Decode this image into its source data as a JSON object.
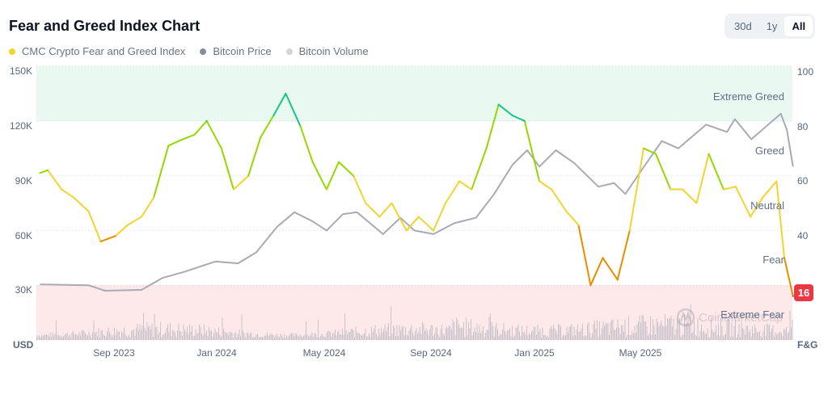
{
  "title": "Fear and Greed Index Chart",
  "legend": [
    {
      "label": "CMC Crypto Fear and Greed Index",
      "color": "#f3d42f"
    },
    {
      "label": "Bitcoin Price",
      "color": "#8a8d98"
    },
    {
      "label": "Bitcoin Volume",
      "color": "#d3d5da"
    }
  ],
  "range_buttons": [
    {
      "label": "30d",
      "active": false
    },
    {
      "label": "1y",
      "active": false
    },
    {
      "label": "All",
      "active": true
    }
  ],
  "watermark": "CoinMarketCap",
  "chart_data": {
    "type": "line",
    "title": "",
    "left_axis": {
      "label": "USD",
      "ticks": [
        "150K",
        "120K",
        "90K",
        "60K",
        "30K"
      ],
      "range": [
        0,
        150000
      ]
    },
    "right_axis": {
      "label": "F&G",
      "ticks": [
        "100",
        "80",
        "60",
        "40"
      ],
      "range": [
        0,
        100
      ]
    },
    "x_ticks": [
      "Sep 2023",
      "Jan 2024",
      "May 2024",
      "Sep 2024",
      "Jan 2025",
      "May 2025"
    ],
    "zones": [
      {
        "label": "Extreme Greed",
        "from": 80,
        "to": 100,
        "color": "#e9f8f1"
      },
      {
        "label": "Greed",
        "from": 60,
        "to": 80
      },
      {
        "label": "Neutral",
        "from": 40,
        "to": 60
      },
      {
        "label": "Fear",
        "from": 20,
        "to": 40
      },
      {
        "label": "Extreme Fear",
        "from": 0,
        "to": 20,
        "color": "#fde8ea"
      }
    ],
    "zone_colors": {
      "extreme_fear": "#ea3943",
      "fear": "#ea8c00",
      "neutral": "#f3d42f",
      "greed": "#93d900",
      "extreme_greed": "#16c784"
    },
    "current_value": "16",
    "grid": true,
    "fear_greed": {
      "name": "CMC Crypto Fear and Greed Index",
      "dates": [
        "2023-06-06",
        "2023-06-15",
        "2023-07-01",
        "2023-07-15",
        "2023-08-01",
        "2023-08-15",
        "2023-09-01",
        "2023-09-15",
        "2023-10-01",
        "2023-10-15",
        "2023-11-01",
        "2023-11-15",
        "2023-12-01",
        "2023-12-15",
        "2024-01-01",
        "2024-01-15",
        "2024-02-01",
        "2024-02-15",
        "2024-03-01",
        "2024-03-15",
        "2024-04-01",
        "2024-04-15",
        "2024-05-01",
        "2024-05-15",
        "2024-06-01",
        "2024-06-15",
        "2024-07-01",
        "2024-07-15",
        "2024-08-01",
        "2024-08-15",
        "2024-09-01",
        "2024-09-15",
        "2024-10-01",
        "2024-10-15",
        "2024-11-01",
        "2024-11-15",
        "2024-12-01",
        "2024-12-15",
        "2025-01-01",
        "2025-01-15",
        "2025-02-01",
        "2025-02-15",
        "2025-03-01",
        "2025-03-15",
        "2025-04-01",
        "2025-04-15",
        "2025-05-01",
        "2025-05-15",
        "2025-06-01",
        "2025-06-15",
        "2025-07-01",
        "2025-07-15",
        "2025-08-01",
        "2025-08-15",
        "2025-09-01",
        "2025-09-15",
        "2025-10-01",
        "2025-10-10",
        "2025-10-20"
      ],
      "values": [
        61,
        62,
        55,
        52,
        47,
        36,
        38,
        42,
        45,
        52,
        71,
        73,
        75,
        80,
        70,
        55,
        60,
        74,
        82,
        90,
        78,
        65,
        55,
        65,
        60,
        50,
        45,
        50,
        40,
        45,
        40,
        50,
        58,
        55,
        70,
        86,
        82,
        80,
        58,
        55,
        47,
        42,
        20,
        30,
        22,
        40,
        70,
        68,
        55,
        55,
        50,
        68,
        55,
        56,
        45,
        52,
        58,
        30,
        16
      ]
    },
    "bitcoin_price": {
      "name": "Bitcoin Price",
      "dates": [
        "2023-06-06",
        "2023-08-01",
        "2023-08-20",
        "2023-10-01",
        "2023-10-25",
        "2023-11-20",
        "2023-12-25",
        "2024-01-20",
        "2024-02-10",
        "2024-03-05",
        "2024-03-25",
        "2024-04-15",
        "2024-05-01",
        "2024-05-20",
        "2024-06-05",
        "2024-07-05",
        "2024-07-25",
        "2024-08-10",
        "2024-09-01",
        "2024-09-25",
        "2024-10-20",
        "2024-11-10",
        "2024-12-01",
        "2024-12-18",
        "2025-01-01",
        "2025-01-20",
        "2025-02-10",
        "2025-03-10",
        "2025-03-28",
        "2025-04-10",
        "2025-04-30",
        "2025-05-22",
        "2025-06-10",
        "2025-07-12",
        "2025-08-05",
        "2025-08-14",
        "2025-09-02",
        "2025-10-06",
        "2025-10-13",
        "2025-10-20"
      ],
      "values": [
        30500,
        30000,
        27000,
        27500,
        34000,
        37500,
        43000,
        42000,
        48000,
        62000,
        70000,
        65000,
        60000,
        69000,
        70000,
        58000,
        67000,
        60000,
        58000,
        64000,
        67000,
        80000,
        96000,
        104000,
        95000,
        104000,
        97000,
        84000,
        86000,
        80000,
        94000,
        109000,
        105000,
        118000,
        114000,
        121000,
        110000,
        124000,
        115000,
        95000
      ]
    },
    "bitcoin_volume": {
      "name": "Bitcoin Volume"
    }
  }
}
